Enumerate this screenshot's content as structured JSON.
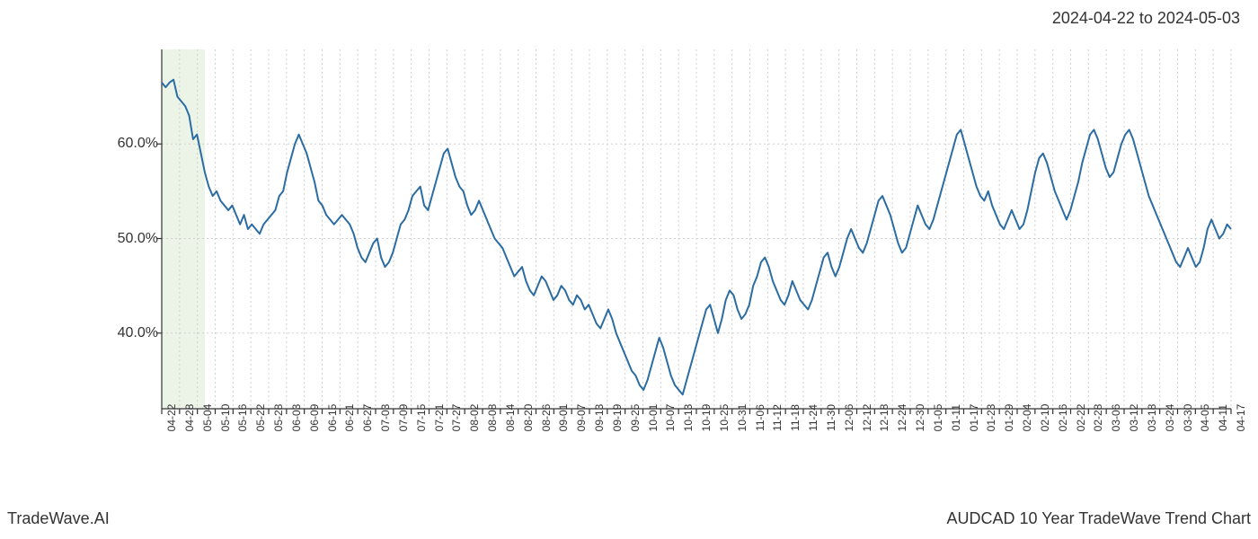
{
  "date_range": "2024-04-22 to 2024-05-03",
  "brand": "TradeWave.AI",
  "title": "AUDCAD 10 Year TradeWave Trend Chart",
  "chart": {
    "type": "line",
    "background_color": "#ffffff",
    "line_color": "#2b6ca3",
    "line_width": 2,
    "axis_color": "#333333",
    "grid_color": "#d0d0d0",
    "grid_dash": "2,3",
    "highlight_band": {
      "x_start": 0,
      "x_end": 11,
      "fill_color": "#e0ecd8",
      "opacity": 0.6
    },
    "y_axis": {
      "min": 32,
      "max": 70,
      "ticks": [
        40.0,
        50.0,
        60.0
      ],
      "tick_labels": [
        "40.0%",
        "50.0%",
        "60.0%"
      ],
      "label_fontsize": 16
    },
    "x_axis": {
      "labels": [
        "04-22",
        "04-28",
        "05-04",
        "05-10",
        "05-16",
        "05-22",
        "05-28",
        "06-03",
        "06-09",
        "06-15",
        "06-21",
        "06-27",
        "07-03",
        "07-09",
        "07-15",
        "07-21",
        "07-27",
        "08-02",
        "08-08",
        "08-14",
        "08-20",
        "08-26",
        "09-01",
        "09-07",
        "09-13",
        "09-19",
        "09-25",
        "10-01",
        "10-07",
        "10-13",
        "10-19",
        "10-25",
        "10-31",
        "11-06",
        "11-12",
        "11-18",
        "11-24",
        "11-30",
        "12-06",
        "12-12",
        "12-18",
        "12-24",
        "12-30",
        "01-05",
        "01-11",
        "01-17",
        "01-23",
        "01-29",
        "02-04",
        "02-10",
        "02-16",
        "02-22",
        "02-28",
        "03-06",
        "03-12",
        "03-18",
        "03-24",
        "03-30",
        "04-05",
        "04-11",
        "04-17"
      ],
      "label_fontsize": 12
    },
    "series": {
      "values": [
        66.5,
        66.0,
        66.5,
        66.8,
        65.0,
        64.5,
        64.0,
        63.0,
        60.5,
        61.0,
        59.0,
        57.0,
        55.5,
        54.5,
        55.0,
        54.0,
        53.5,
        53.0,
        53.5,
        52.5,
        51.5,
        52.5,
        51.0,
        51.5,
        51.0,
        50.5,
        51.5,
        52.0,
        52.5,
        53.0,
        54.5,
        55.0,
        57.0,
        58.5,
        60.0,
        61.0,
        60.0,
        59.0,
        57.5,
        56.0,
        54.0,
        53.5,
        52.5,
        52.0,
        51.5,
        52.0,
        52.5,
        52.0,
        51.5,
        50.5,
        49.0,
        48.0,
        47.5,
        48.5,
        49.5,
        50.0,
        48.0,
        47.0,
        47.5,
        48.5,
        50.0,
        51.5,
        52.0,
        53.0,
        54.5,
        55.0,
        55.5,
        53.5,
        53.0,
        54.5,
        56.0,
        57.5,
        59.0,
        59.5,
        58.0,
        56.5,
        55.5,
        55.0,
        53.5,
        52.5,
        53.0,
        54.0,
        53.0,
        52.0,
        51.0,
        50.0,
        49.5,
        49.0,
        48.0,
        47.0,
        46.0,
        46.5,
        47.0,
        45.5,
        44.5,
        44.0,
        45.0,
        46.0,
        45.5,
        44.5,
        43.5,
        44.0,
        45.0,
        44.5,
        43.5,
        43.0,
        44.0,
        43.5,
        42.5,
        43.0,
        42.0,
        41.0,
        40.5,
        41.5,
        42.5,
        41.5,
        40.0,
        39.0,
        38.0,
        37.0,
        36.0,
        35.5,
        34.5,
        34.0,
        35.0,
        36.5,
        38.0,
        39.5,
        38.5,
        37.0,
        35.5,
        34.5,
        34.0,
        33.5,
        35.0,
        36.5,
        38.0,
        39.5,
        41.0,
        42.5,
        43.0,
        41.5,
        40.0,
        41.5,
        43.5,
        44.5,
        44.0,
        42.5,
        41.5,
        42.0,
        43.0,
        45.0,
        46.0,
        47.5,
        48.0,
        47.0,
        45.5,
        44.5,
        43.5,
        43.0,
        44.0,
        45.5,
        44.5,
        43.5,
        43.0,
        42.5,
        43.5,
        45.0,
        46.5,
        48.0,
        48.5,
        47.0,
        46.0,
        47.0,
        48.5,
        50.0,
        51.0,
        50.0,
        49.0,
        48.5,
        49.5,
        51.0,
        52.5,
        54.0,
        54.5,
        53.5,
        52.5,
        51.0,
        49.5,
        48.5,
        49.0,
        50.5,
        52.0,
        53.5,
        52.5,
        51.5,
        51.0,
        52.0,
        53.5,
        55.0,
        56.5,
        58.0,
        59.5,
        61.0,
        61.5,
        60.0,
        58.5,
        57.0,
        55.5,
        54.5,
        54.0,
        55.0,
        53.5,
        52.5,
        51.5,
        51.0,
        52.0,
        53.0,
        52.0,
        51.0,
        51.5,
        53.0,
        55.0,
        57.0,
        58.5,
        59.0,
        58.0,
        56.5,
        55.0,
        54.0,
        53.0,
        52.0,
        53.0,
        54.5,
        56.0,
        58.0,
        59.5,
        61.0,
        61.5,
        60.5,
        59.0,
        57.5,
        56.5,
        57.0,
        58.5,
        60.0,
        61.0,
        61.5,
        60.5,
        59.0,
        57.5,
        56.0,
        54.5,
        53.5,
        52.5,
        51.5,
        50.5,
        49.5,
        48.5,
        47.5,
        47.0,
        48.0,
        49.0,
        48.0,
        47.0,
        47.5,
        49.0,
        51.0,
        52.0,
        51.0,
        50.0,
        50.5,
        51.5,
        51.0
      ]
    }
  }
}
